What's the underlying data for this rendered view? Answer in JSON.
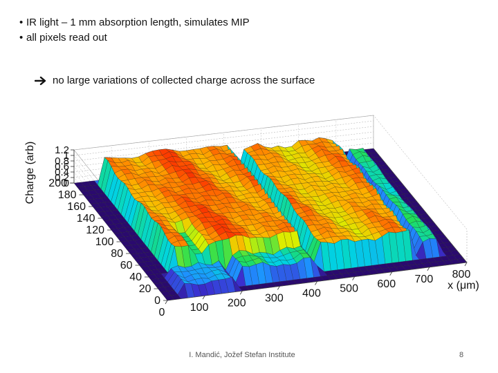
{
  "bullets": [
    "IR light – 1 mm absorption length, simulates MIP",
    "all pixels read out"
  ],
  "conclusion": "no large variations of collected charge across the surface",
  "footer": {
    "credit": "I. Mandić, Jožef Stefan Institute",
    "page": "8"
  },
  "chart_data": {
    "type": "surface3d",
    "title": "",
    "xlabel": "x (μm)",
    "ylabel": "",
    "zlabel": "Charge (arb)",
    "x_ticks": [
      "0",
      "100",
      "200",
      "300",
      "400",
      "500",
      "600",
      "700",
      "800"
    ],
    "y_ticks": [
      "0",
      "20",
      "40",
      "60",
      "80",
      "100",
      "120",
      "140",
      "160",
      "180",
      "200"
    ],
    "z_ticks": [
      "0",
      "0.2",
      "0.4",
      "0.6",
      "0.8",
      "1",
      "1.2"
    ],
    "xlim": [
      0,
      800
    ],
    "ylim": [
      0,
      200
    ],
    "zlim": [
      0,
      1.2
    ],
    "colormap": [
      "#2a0a6e",
      "#3b2fd0",
      "#1e90ff",
      "#00d5e0",
      "#22dd55",
      "#d9f000",
      "#ffb000",
      "#ff4400",
      "#e00000"
    ],
    "plateau_level": 1.0
  }
}
